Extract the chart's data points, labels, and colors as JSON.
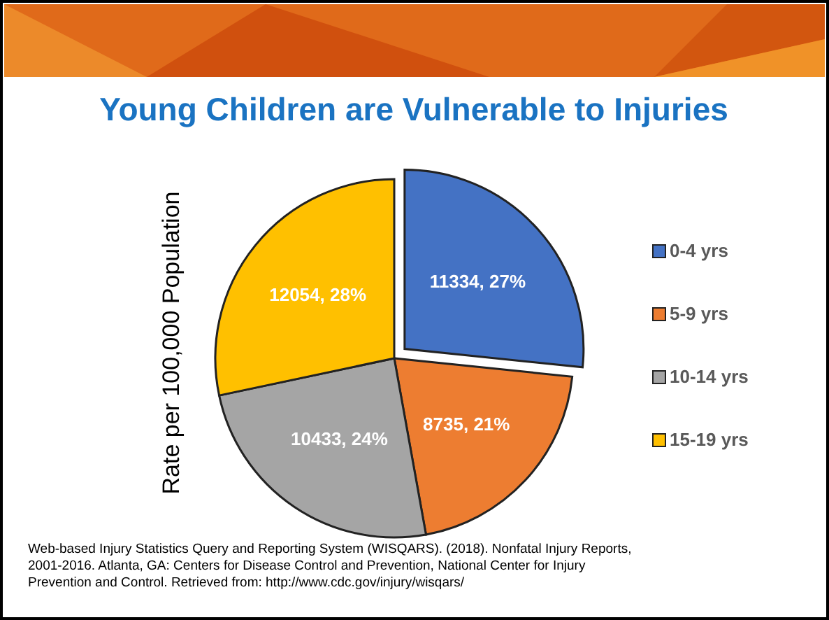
{
  "chart_data": {
    "type": "pie",
    "title": "Young Children are Vulnerable to Injuries",
    "ylabel": "Rate per 100,000 Population",
    "categories": [
      "0-4 yrs",
      "5-9 yrs",
      "10-14 yrs",
      "15-19 yrs"
    ],
    "values": [
      11334,
      8735,
      10433,
      12054
    ],
    "value_labels": [
      "11334, 27%",
      "8735, 21%",
      "10433, 24%",
      "12054, 28%"
    ],
    "colors": [
      "#4472c4",
      "#ed7d31",
      "#a5a5a5",
      "#ffc000"
    ],
    "legend": "right",
    "annotations": [
      "Web-based Injury Statistics Query and Reporting System (WISQARS). (2018). Nonfatal Injury Reports, 2001-2016. Atlanta, GA: Centers for Disease Control and Prevention, National Center for Injury Prevention and Control. Retrieved from: http://www.cdc.gov/injury/wisqars/"
    ]
  }
}
